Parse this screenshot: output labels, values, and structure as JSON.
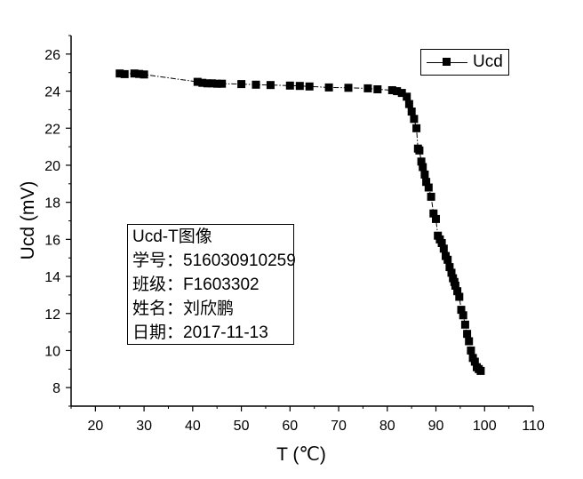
{
  "chart_data": {
    "type": "line",
    "xlabel": "T (℃)",
    "ylabel": "Ucd (mV)",
    "xlim": [
      15,
      110
    ],
    "ylim": [
      7,
      27
    ],
    "x_ticks": [
      20,
      30,
      40,
      50,
      60,
      70,
      80,
      90,
      100,
      110
    ],
    "y_ticks": [
      8,
      10,
      12,
      14,
      16,
      18,
      20,
      22,
      24,
      26
    ],
    "grid": false,
    "legend_position": "top-right",
    "series": [
      {
        "name": "Ucd",
        "marker": "square",
        "color": "#000000",
        "x": [
          25,
          26,
          28,
          29,
          30,
          41,
          42,
          43,
          44,
          45,
          46,
          50,
          53,
          56,
          60,
          62,
          64,
          68,
          72,
          76,
          78,
          81,
          82,
          83,
          84,
          84.5,
          85,
          85.5,
          86,
          86.3,
          86.6,
          87,
          87.3,
          87.7,
          88,
          88.5,
          89,
          89.5,
          90,
          90.4,
          90.8,
          91.2,
          91.6,
          92,
          92.4,
          92.8,
          93.2,
          93.5,
          93.8,
          94,
          94.4,
          94.8,
          95.2,
          95.6,
          96,
          96.4,
          96.8,
          97.2,
          97.6,
          98,
          98.4,
          98.8,
          99.2
        ],
        "y": [
          24.95,
          24.92,
          24.95,
          24.93,
          24.9,
          24.5,
          24.45,
          24.42,
          24.42,
          24.4,
          24.4,
          24.38,
          24.35,
          24.33,
          24.3,
          24.28,
          24.25,
          24.2,
          24.18,
          24.15,
          24.1,
          24.05,
          24.0,
          23.9,
          23.7,
          23.3,
          22.9,
          22.5,
          22.0,
          20.9,
          20.8,
          20.2,
          19.9,
          19.5,
          19.1,
          18.8,
          18.3,
          17.4,
          17.1,
          16.2,
          16.0,
          15.8,
          15.5,
          15.1,
          14.9,
          14.5,
          14.2,
          13.9,
          13.7,
          13.5,
          13.2,
          12.9,
          12.2,
          11.9,
          11.4,
          10.9,
          10.5,
          10.0,
          9.6,
          9.4,
          9.1,
          9.0,
          8.9
        ]
      }
    ]
  },
  "legend": {
    "label": "Ucd"
  },
  "info_box": {
    "title": "Ucd-T图像",
    "student_id": "学号：516030910259",
    "class": "班级：F1603302",
    "name": "姓名：刘欣鹏",
    "date": "日期：2017-11-13"
  }
}
